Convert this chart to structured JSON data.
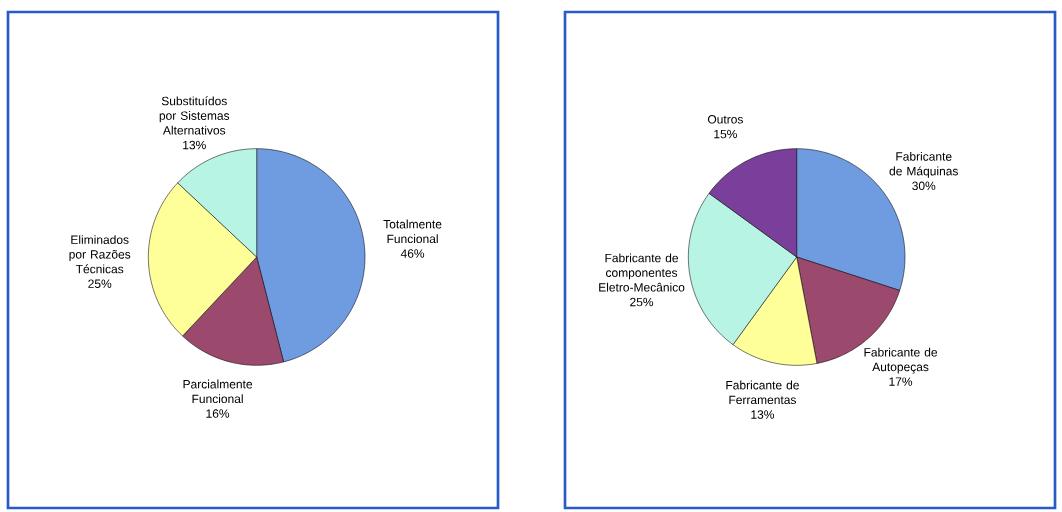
{
  "chart_data": [
    {
      "type": "pie",
      "categories": [
        "Totalmente Funcional",
        "Parcialmente Funcional",
        "Eliminados por Razões Técnicas",
        "Substituídos por Sistemas Alternativos"
      ],
      "values": [
        46,
        16,
        25,
        13
      ],
      "value_labels": [
        "46%",
        "16%",
        "25%",
        "13%"
      ],
      "colors": [
        "#6f9be0",
        "#9b4a6e",
        "#ffff99",
        "#b8f4e4"
      ]
    },
    {
      "type": "pie",
      "categories": [
        "Fabricante de Máquinas",
        "Fabricante de Autopeças",
        "Fabricante de Ferramentas",
        "Fabricante de componentes Eletro-Mecânico",
        "Outros"
      ],
      "values": [
        30,
        17,
        13,
        25,
        15
      ],
      "value_labels": [
        "30%",
        "17%",
        "13%",
        "25%",
        "15%"
      ],
      "colors": [
        "#6f9be0",
        "#9b4a6e",
        "#ffff99",
        "#b8f4e4",
        "#7a3f9a"
      ]
    }
  ]
}
